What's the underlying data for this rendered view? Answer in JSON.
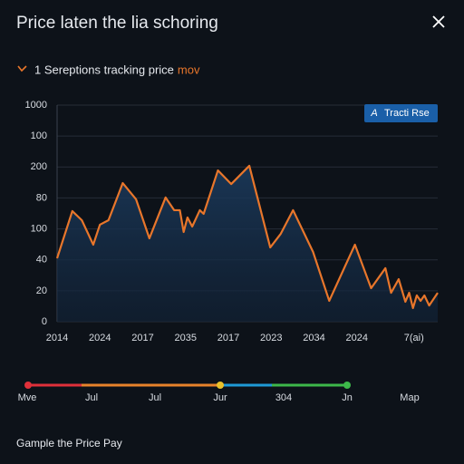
{
  "header": {
    "title": "Price laten the lia schoring",
    "subtitle": "1 Sereptions tracking price",
    "subtitle_highlight": "mov"
  },
  "chart_data": {
    "type": "line",
    "x": [
      0,
      1.6,
      2.6,
      3.8,
      4.5,
      5.4,
      6.9,
      8.3,
      9.7,
      11.4,
      12.3,
      12.9,
      13.3,
      13.7,
      14.2,
      15.0,
      15.4,
      16.9,
      18.3,
      20.2,
      22.4,
      23.5,
      24.8,
      26.9,
      28.6,
      31.3,
      33.0,
      34.5,
      35.1,
      35.9,
      36.6,
      37.0,
      37.4,
      37.8,
      38.2,
      38.6,
      39.1,
      40
    ],
    "series": [
      {
        "name": "Tracti Rse",
        "color": "#e8762b",
        "values": [
          41.0,
          71.5,
          65.6,
          49.8,
          62.7,
          65.6,
          89.6,
          79.1,
          53.9,
          80.3,
          72.1,
          72.1,
          58.0,
          67.4,
          61.5,
          72.1,
          69.7,
          97.8,
          89.0,
          100.8,
          48.0,
          56.8,
          72.1,
          45.1,
          13.5,
          49.8,
          21.7,
          34.6,
          18.7,
          27.5,
          12.9,
          18.7,
          8.8,
          17.0,
          13.5,
          17.0,
          10.5,
          18.7
        ]
      }
    ],
    "xlim": [
      0,
      40
    ],
    "xticks": [
      {
        "value": 0,
        "label": "2014"
      },
      {
        "value": 4.5,
        "label": "2024"
      },
      {
        "value": 9,
        "label": "2017"
      },
      {
        "value": 13.5,
        "label": "2035"
      },
      {
        "value": 18,
        "label": "2017"
      },
      {
        "value": 22.5,
        "label": "2023"
      },
      {
        "value": 27,
        "label": "2034"
      },
      {
        "value": 31.5,
        "label": "2024"
      },
      {
        "value": 37.5,
        "label": "7(ai)"
      }
    ],
    "ylim": [
      0,
      140
    ],
    "yticks": [
      0,
      20,
      40,
      {
        "value": 60,
        "label": "100"
      },
      80,
      {
        "value": 100,
        "label": "200"
      },
      {
        "value": 120,
        "label": "100"
      },
      {
        "value": 140,
        "label": "1000"
      }
    ],
    "grid": true
  },
  "timeline": {
    "labels": [
      "Mve",
      "Jul",
      "Jul",
      "Jur",
      "304",
      "Jn",
      "Map"
    ]
  },
  "footer": {
    "text": "Gample the Price Pay"
  }
}
